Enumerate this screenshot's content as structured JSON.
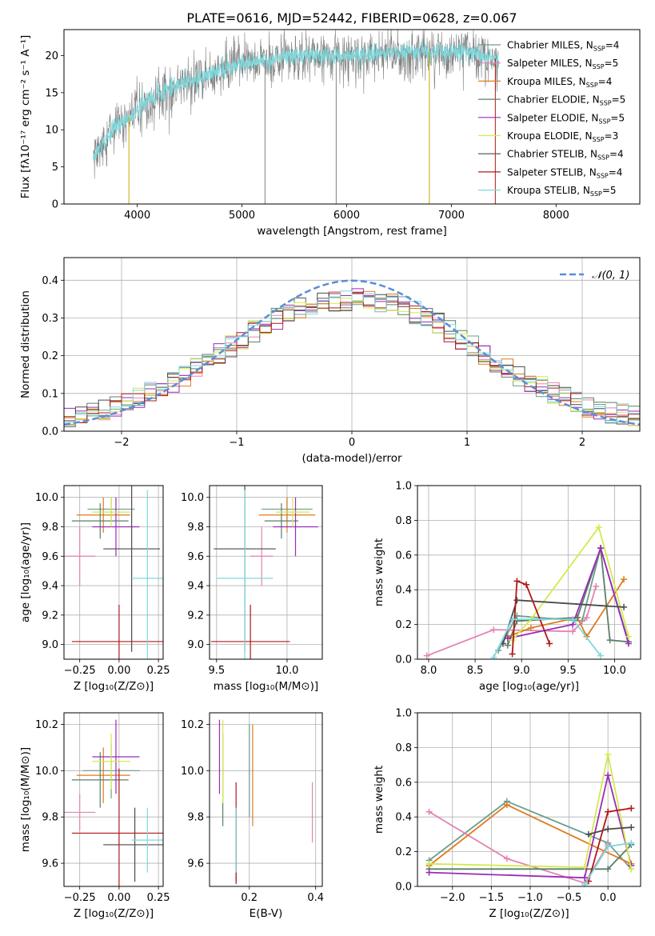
{
  "figure": {
    "title": "PLATE=0616, MJD=52442, FIBERID=0628, z=0.067"
  },
  "models": [
    {
      "name": "Chabrier MILES",
      "nssp": "4",
      "color": "#6d9d8d"
    },
    {
      "name": "Salpeter MILES",
      "nssp": "5",
      "color": "#e383b3"
    },
    {
      "name": "Kroupa MILES",
      "nssp": "4",
      "color": "#e07a20"
    },
    {
      "name": "Chabrier ELODIE",
      "nssp": "5",
      "color": "#5b7f66"
    },
    {
      "name": "Salpeter ELODIE",
      "nssp": "5",
      "color": "#9a2bb8"
    },
    {
      "name": "Kroupa ELODIE",
      "nssp": "3",
      "color": "#d2ea4a"
    },
    {
      "name": "Chabrier STELIB",
      "nssp": "4",
      "color": "#4a4a4a"
    },
    {
      "name": "Salpeter STELIB",
      "nssp": "4",
      "color": "#b01818"
    },
    {
      "name": "Kroupa STELIB",
      "nssp": "5",
      "color": "#7ed8dc"
    }
  ],
  "chart_data": [
    {
      "id": "spectrum",
      "type": "line",
      "xlabel": "wavelength [Angstrom, rest frame]",
      "ylabel": "Flux [fλ10⁻¹⁷ erg cm⁻² s⁻¹ A⁻¹]",
      "xlim": [
        3300,
        8800
      ],
      "ylim": [
        0,
        23.5
      ],
      "xticks": [
        4000,
        5000,
        6000,
        7000,
        8000
      ],
      "yticks": [
        0,
        5,
        10,
        15,
        20
      ],
      "legend": "top-right",
      "data_color": "#808080",
      "model_color": "#7ed8dc",
      "x_range": [
        3580,
        7450
      ],
      "continuum": [
        [
          3580,
          6.5
        ],
        [
          3700,
          8.5
        ],
        [
          3800,
          10.5
        ],
        [
          3900,
          11.5
        ],
        [
          4000,
          12.5
        ],
        [
          4100,
          14
        ],
        [
          4300,
          15.5
        ],
        [
          4500,
          16.5
        ],
        [
          4800,
          18
        ],
        [
          5000,
          19
        ],
        [
          5300,
          19.5
        ],
        [
          5600,
          20
        ],
        [
          6000,
          20
        ],
        [
          6500,
          20.5
        ],
        [
          7000,
          20.5
        ],
        [
          7300,
          20
        ],
        [
          7450,
          19.5
        ]
      ]
    },
    {
      "id": "residuals",
      "type": "histogram",
      "xlabel": "(data-model)/error",
      "ylabel": "Normed distribution",
      "xlim": [
        -2.5,
        2.5
      ],
      "ylim": [
        0,
        0.46
      ],
      "xticks": [
        -2,
        -1,
        0,
        1,
        2
      ],
      "yticks": [
        0.0,
        0.1,
        0.2,
        0.3,
        0.4
      ],
      "legend_label": "𝒩(0, 1)",
      "legend": "top-right",
      "gaussian": {
        "mu": 0,
        "sigma": 1,
        "color": "#5b8ed6"
      },
      "bin_width": 0.1
    },
    {
      "id": "age-vs-Z",
      "type": "errorbar",
      "xlabel": "Z [log₁₀(Z/Z⊙)]",
      "ylabel": "age  [log₁₀(age/yr)]",
      "xlim": [
        -0.35,
        0.28
      ],
      "ylim": [
        8.9,
        10.08
      ],
      "xticks": [
        -0.25,
        0.0,
        0.25
      ],
      "yticks": [
        9.0,
        9.2,
        9.4,
        9.6,
        9.8,
        10.0
      ],
      "points": [
        {
          "x": -0.05,
          "xerr": 0.15,
          "y": 9.92,
          "yerr": 0.08,
          "model": "Chabrier MILES"
        },
        {
          "x": -0.25,
          "xerr": 0.1,
          "y": 9.6,
          "yerr": 0.2,
          "model": "Salpeter MILES"
        },
        {
          "x": -0.1,
          "xerr": 0.17,
          "y": 9.88,
          "yerr": 0.12,
          "model": "Kroupa MILES"
        },
        {
          "x": -0.12,
          "xerr": 0.18,
          "y": 9.84,
          "yerr": 0.12,
          "model": "Chabrier ELODIE"
        },
        {
          "x": -0.02,
          "xerr": 0.15,
          "y": 9.8,
          "yerr": 0.2,
          "model": "Salpeter ELODIE"
        },
        {
          "x": -0.05,
          "xerr": 0.12,
          "y": 9.9,
          "yerr": 0.1,
          "model": "Kroupa ELODIE"
        },
        {
          "x": 0.08,
          "xerr": 0.18,
          "y": 9.65,
          "yerr": 0.7,
          "model": "Chabrier STELIB"
        },
        {
          "x": 0.0,
          "xerr": 0.3,
          "y": 9.02,
          "yerr": 0.25,
          "model": "Salpeter STELIB"
        },
        {
          "x": 0.18,
          "xerr": 0.1,
          "y": 9.45,
          "yerr": 0.6,
          "model": "Kroupa STELIB"
        }
      ]
    },
    {
      "id": "age-vs-mass",
      "type": "errorbar",
      "xlabel": "mass [log₁₀(M/M⊙)]",
      "ylabel": "",
      "xlim": [
        9.45,
        10.25
      ],
      "ylim": [
        8.9,
        10.08
      ],
      "xticks": [
        9.5,
        10.0
      ],
      "yticks": [
        9.0,
        9.2,
        9.4,
        9.6,
        9.8,
        10.0
      ],
      "points": [
        {
          "x": 10.0,
          "xerr": 0.18,
          "y": 9.92,
          "yerr": 0.08,
          "model": "Chabrier MILES"
        },
        {
          "x": 9.82,
          "xerr": 0.08,
          "y": 9.6,
          "yerr": 0.2,
          "model": "Salpeter MILES"
        },
        {
          "x": 10.0,
          "xerr": 0.2,
          "y": 9.88,
          "yerr": 0.12,
          "model": "Kroupa MILES"
        },
        {
          "x": 9.96,
          "xerr": 0.12,
          "y": 9.84,
          "yerr": 0.12,
          "model": "Chabrier ELODIE"
        },
        {
          "x": 10.06,
          "xerr": 0.16,
          "y": 9.8,
          "yerr": 0.2,
          "model": "Salpeter ELODIE"
        },
        {
          "x": 10.04,
          "xerr": 0.12,
          "y": 9.9,
          "yerr": 0.1,
          "model": "Kroupa ELODIE"
        },
        {
          "x": 9.7,
          "xerr": 0.22,
          "y": 9.65,
          "yerr": 0.7,
          "model": "Chabrier STELIB"
        },
        {
          "x": 9.74,
          "xerr": 0.28,
          "y": 9.02,
          "yerr": 0.25,
          "model": "Salpeter STELIB"
        },
        {
          "x": 9.7,
          "xerr": 0.2,
          "y": 9.45,
          "yerr": 0.6,
          "model": "Kroupa STELIB"
        }
      ]
    },
    {
      "id": "weight-vs-age",
      "type": "line",
      "xlabel": "age  [log₁₀(age/yr)]",
      "ylabel": "mass weight",
      "xlim": [
        7.88,
        10.28
      ],
      "ylim": [
        0.0,
        1.0
      ],
      "xticks": [
        8.0,
        8.5,
        9.0,
        9.5,
        10.0
      ],
      "yticks": [
        0.0,
        0.2,
        0.4,
        0.6,
        0.8,
        1.0
      ],
      "series": [
        {
          "model": "Chabrier MILES",
          "x": [
            8.75,
            8.95,
            9.65,
            9.85,
            10.15
          ],
          "y": [
            0.05,
            0.25,
            0.22,
            0.64,
            0.1
          ]
        },
        {
          "model": "Salpeter MILES",
          "x": [
            7.98,
            8.7,
            9.55,
            9.7,
            9.8
          ],
          "y": [
            0.02,
            0.17,
            0.16,
            0.24,
            0.42
          ]
        },
        {
          "model": "Kroupa MILES",
          "x": [
            8.85,
            9.1,
            9.6,
            9.7,
            10.1
          ],
          "y": [
            0.13,
            0.18,
            0.24,
            0.13,
            0.46
          ]
        },
        {
          "model": "Chabrier ELODIE",
          "x": [
            8.85,
            8.95,
            9.6,
            9.85,
            9.95,
            10.15
          ],
          "y": [
            0.08,
            0.22,
            0.24,
            0.64,
            0.11,
            0.1
          ]
        },
        {
          "model": "Salpeter ELODIE",
          "x": [
            8.85,
            9.55,
            9.85,
            10.15
          ],
          "y": [
            0.12,
            0.2,
            0.64,
            0.09
          ]
        },
        {
          "model": "Kroupa ELODIE",
          "x": [
            8.9,
            9.1,
            9.83,
            10.15
          ],
          "y": [
            0.11,
            0.23,
            0.76,
            0.13
          ]
        },
        {
          "model": "Chabrier STELIB",
          "x": [
            8.8,
            8.95,
            10.1
          ],
          "y": [
            0.09,
            0.34,
            0.3
          ]
        },
        {
          "model": "Salpeter STELIB",
          "x": [
            8.9,
            8.95,
            9.05,
            9.3
          ],
          "y": [
            0.03,
            0.45,
            0.43,
            0.09
          ]
        },
        {
          "model": "Kroupa STELIB",
          "x": [
            8.7,
            8.9,
            9.55,
            9.85
          ],
          "y": [
            0.01,
            0.23,
            0.23,
            0.02
          ]
        }
      ]
    },
    {
      "id": "mass-vs-Z",
      "type": "errorbar",
      "xlabel": "Z [log₁₀(Z/Z⊙)]",
      "ylabel": "mass [log₁₀(M/M⊙)]",
      "xlim": [
        -0.35,
        0.28
      ],
      "ylim": [
        9.5,
        10.25
      ],
      "xticks": [
        -0.25,
        0.0,
        0.25
      ],
      "yticks": [
        9.6,
        9.8,
        10.0,
        10.2
      ],
      "points": [
        {
          "x": -0.05,
          "xerr": 0.18,
          "y": 10.0,
          "yerr": 0.12,
          "model": "Chabrier MILES"
        },
        {
          "x": -0.25,
          "xerr": 0.1,
          "y": 9.82,
          "yerr": 0.08,
          "model": "Salpeter MILES"
        },
        {
          "x": -0.1,
          "xerr": 0.17,
          "y": 9.98,
          "yerr": 0.12,
          "model": "Kroupa MILES"
        },
        {
          "x": -0.12,
          "xerr": 0.18,
          "y": 9.96,
          "yerr": 0.12,
          "model": "Chabrier ELODIE"
        },
        {
          "x": -0.02,
          "xerr": 0.15,
          "y": 10.06,
          "yerr": 0.16,
          "model": "Salpeter ELODIE"
        },
        {
          "x": -0.05,
          "xerr": 0.12,
          "y": 10.04,
          "yerr": 0.12,
          "model": "Kroupa ELODIE"
        },
        {
          "x": 0.1,
          "xerr": 0.2,
          "y": 9.68,
          "yerr": 0.16,
          "model": "Chabrier STELIB"
        },
        {
          "x": 0.0,
          "xerr": 0.3,
          "y": 9.73,
          "yerr": 0.28,
          "model": "Salpeter STELIB"
        },
        {
          "x": 0.18,
          "xerr": 0.1,
          "y": 9.7,
          "yerr": 0.14,
          "model": "Kroupa STELIB"
        }
      ]
    },
    {
      "id": "mass-vs-EBV",
      "type": "errorbar",
      "xlabel": "E(B-V)",
      "ylabel": "",
      "xlim": [
        0.08,
        0.42
      ],
      "ylim": [
        9.5,
        10.25
      ],
      "xticks": [
        0.2,
        0.4
      ],
      "yticks": [
        9.6,
        9.8,
        10.0,
        10.2
      ],
      "points": [
        {
          "x": 0.2,
          "xerr": 0.0,
          "y": 10.0,
          "yerr": 0.2,
          "model": "Chabrier MILES"
        },
        {
          "x": 0.39,
          "xerr": 0.0,
          "y": 9.82,
          "yerr": 0.13,
          "model": "Salpeter MILES"
        },
        {
          "x": 0.21,
          "xerr": 0.0,
          "y": 9.98,
          "yerr": 0.22,
          "model": "Kroupa MILES"
        },
        {
          "x": 0.12,
          "xerr": 0.0,
          "y": 9.96,
          "yerr": 0.2,
          "model": "Chabrier ELODIE"
        },
        {
          "x": 0.11,
          "xerr": 0.0,
          "y": 10.06,
          "yerr": 0.16,
          "model": "Salpeter ELODIE"
        },
        {
          "x": 0.12,
          "xerr": 0.0,
          "y": 10.04,
          "yerr": 0.18,
          "model": "Kroupa ELODIE"
        },
        {
          "x": 0.16,
          "xerr": 0.0,
          "y": 9.68,
          "yerr": 0.16,
          "model": "Chabrier STELIB"
        },
        {
          "x": 0.16,
          "xerr": 0.0,
          "y": 9.73,
          "yerr": 0.22,
          "model": "Salpeter STELIB"
        },
        {
          "x": 0.16,
          "xerr": 0.0,
          "y": 9.7,
          "yerr": 0.14,
          "model": "Kroupa STELIB"
        }
      ]
    },
    {
      "id": "weight-vs-Z",
      "type": "line",
      "xlabel": "Z [log₁₀(Z/Z⊙)]",
      "ylabel": "mass weight",
      "xlim": [
        -2.45,
        0.42
      ],
      "ylim": [
        0.0,
        1.0
      ],
      "xticks": [
        -2.0,
        -1.5,
        -1.0,
        -0.5,
        0.0
      ],
      "yticks": [
        0.0,
        0.2,
        0.4,
        0.6,
        0.8,
        1.0
      ],
      "series": [
        {
          "model": "Chabrier MILES",
          "x": [
            -2.3,
            -1.3,
            0.0,
            0.3
          ],
          "y": [
            0.15,
            0.49,
            0.25,
            0.1
          ]
        },
        {
          "model": "Salpeter MILES",
          "x": [
            -2.3,
            -1.3,
            -0.3,
            0.0
          ],
          "y": [
            0.43,
            0.16,
            0.02,
            0.24
          ]
        },
        {
          "model": "Kroupa MILES",
          "x": [
            -2.3,
            -1.3,
            0.3
          ],
          "y": [
            0.12,
            0.47,
            0.13
          ]
        },
        {
          "model": "Chabrier ELODIE",
          "x": [
            -2.3,
            0.0,
            0.3
          ],
          "y": [
            0.1,
            0.1,
            0.24
          ]
        },
        {
          "model": "Salpeter ELODIE",
          "x": [
            -2.3,
            -0.3,
            0.0,
            0.3
          ],
          "y": [
            0.08,
            0.05,
            0.64,
            0.12
          ]
        },
        {
          "model": "Kroupa ELODIE",
          "x": [
            -2.3,
            -0.3,
            0.0,
            0.3
          ],
          "y": [
            0.13,
            0.11,
            0.76,
            0.1
          ]
        },
        {
          "model": "Chabrier STELIB",
          "x": [
            -0.25,
            0.0,
            0.3
          ],
          "y": [
            0.3,
            0.33,
            0.34
          ]
        },
        {
          "model": "Salpeter STELIB",
          "x": [
            -0.25,
            0.0,
            0.3
          ],
          "y": [
            0.03,
            0.43,
            0.45
          ]
        },
        {
          "model": "Kroupa STELIB",
          "x": [
            -0.3,
            0.0,
            0.3
          ],
          "y": [
            0.01,
            0.23,
            0.25
          ]
        }
      ]
    }
  ]
}
